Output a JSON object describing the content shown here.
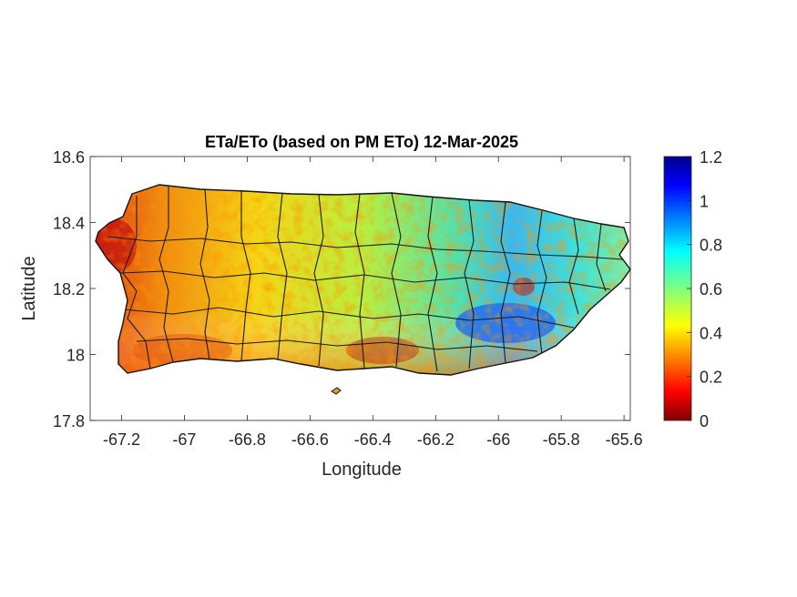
{
  "chart_data": {
    "type": "heatmap",
    "title": "ETa/ETo (based on PM ETo) 12-Mar-2025",
    "xlabel": "Longitude",
    "ylabel": "Latitude",
    "xlim": [
      -67.3,
      -65.58
    ],
    "ylim": [
      17.8,
      18.6
    ],
    "xticks": [
      -67.2,
      -67,
      -66.8,
      -66.6,
      -66.4,
      -66.2,
      -66,
      -65.8,
      -65.6
    ],
    "xtick_labels": [
      "-67.2",
      "-67",
      "-66.8",
      "-66.6",
      "-66.4",
      "-66.2",
      "-66",
      "-65.8",
      "-65.6"
    ],
    "yticks": [
      17.8,
      18,
      18.2,
      18.4,
      18.6
    ],
    "ytick_labels": [
      "17.8",
      "18",
      "18.2",
      "18.4",
      "18.6"
    ],
    "colorbar": {
      "colormap": "jet",
      "range": [
        0,
        1.2
      ],
      "ticks": [
        0,
        0.2,
        0.4,
        0.6,
        0.8,
        1,
        1.2
      ],
      "tick_labels": [
        "0",
        "0.2",
        "0.4",
        "0.6",
        "0.8",
        "1",
        "1.2"
      ]
    },
    "grid": false,
    "region": "Puerto Rico (municipality boundaries)",
    "regional_values": [
      {
        "area": "west coast",
        "value": 0.15
      },
      {
        "area": "southwest",
        "value": 0.3
      },
      {
        "area": "south coast",
        "value": 0.25
      },
      {
        "area": "north-central",
        "value": 0.45
      },
      {
        "area": "central interior",
        "value": 0.6
      },
      {
        "area": "east-central",
        "value": 0.85
      },
      {
        "area": "northeast",
        "value": 0.7
      },
      {
        "area": "east coast",
        "value": 0.55
      }
    ]
  }
}
